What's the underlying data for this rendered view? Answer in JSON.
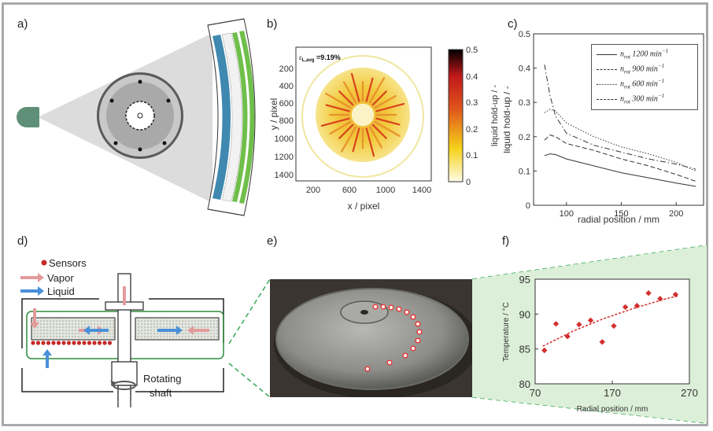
{
  "panels": {
    "a": "a)",
    "b": "b)",
    "c": "c)",
    "d": "d)",
    "e": "e)",
    "f": "f)"
  },
  "panel_b": {
    "annotation": "ε",
    "annotation_sub": "L,avg",
    "annotation_value": " =9.19%",
    "xlabel": "x / pixel",
    "ylabel": "y / pixel",
    "xticks": [
      "200",
      "600",
      "1000",
      "1400"
    ],
    "yticks": [
      "200",
      "400",
      "600",
      "800",
      "1000",
      "1200",
      "1400"
    ],
    "colorbar_ticks": [
      "0.5",
      "0.4",
      "0.3",
      "0.2",
      "0.1",
      "0"
    ],
    "colorbar_label": "liquid hold-up / -",
    "colors": {
      "low": "#fffbe6",
      "mid": "#f5d21a",
      "high": "#c0181a",
      "top": "#000000"
    }
  },
  "chart_data": [
    {
      "type": "line",
      "panel": "c",
      "xlabel": "radial position / mm",
      "ylabel": "liquid hold-up / -",
      "xlim": [
        70,
        225
      ],
      "ylim": [
        0,
        0.5
      ],
      "xticks": [
        "100",
        "150",
        "200"
      ],
      "yticks": [
        "0",
        "0.1",
        "0.2",
        "0.3",
        "0.4",
        "0.5"
      ],
      "grid": false,
      "legend": "top-right",
      "series": [
        {
          "name": "n_rot 1200 min^-1",
          "label": "n",
          "sub": "rot",
          "text": " 1200 ",
          "unit": "min",
          "sup": "−1",
          "style": "solid",
          "x": [
            80,
            85,
            90,
            100,
            125,
            150,
            175,
            200,
            218
          ],
          "y": [
            0.145,
            0.15,
            0.148,
            0.135,
            0.115,
            0.095,
            0.08,
            0.065,
            0.055
          ]
        },
        {
          "name": "n_rot 900 min^-1",
          "label": "n",
          "sub": "rot",
          "text": " 900 ",
          "unit": "min",
          "sup": "−1",
          "style": "dashed",
          "x": [
            80,
            85,
            90,
            100,
            125,
            150,
            175,
            200,
            218
          ],
          "y": [
            0.19,
            0.205,
            0.2,
            0.18,
            0.16,
            0.135,
            0.115,
            0.09,
            0.07
          ]
        },
        {
          "name": "n_rot 600 min^-1",
          "label": "n",
          "sub": "rot",
          "text": " 600 ",
          "unit": "min",
          "sup": "−1",
          "style": "dotted",
          "x": [
            80,
            85,
            90,
            100,
            125,
            150,
            175,
            200,
            218
          ],
          "y": [
            0.27,
            0.28,
            0.275,
            0.24,
            0.2,
            0.17,
            0.15,
            0.125,
            0.1
          ]
        },
        {
          "name": "n_rot 300 min^-1",
          "label": "n",
          "sub": "rot",
          "text": " 300 ",
          "unit": "min",
          "sup": "−1",
          "style": "dashdot",
          "x": [
            80,
            85,
            90,
            100,
            125,
            150,
            175,
            200,
            218
          ],
          "y": [
            0.41,
            0.32,
            0.26,
            0.21,
            0.175,
            0.155,
            0.135,
            0.12,
            0.105
          ]
        }
      ]
    },
    {
      "type": "scatter",
      "panel": "f",
      "xlabel": "Radial position / mm",
      "ylabel": "Temperature / °C",
      "xlim": [
        70,
        270
      ],
      "ylim": [
        80,
        95
      ],
      "xticks": [
        "70",
        "170",
        "270"
      ],
      "yticks": [
        "80",
        "85",
        "90",
        "95"
      ],
      "grid": false,
      "x": [
        82,
        97,
        112,
        127,
        142,
        157,
        172,
        187,
        202,
        217,
        232,
        252
      ],
      "y": [
        84.8,
        88.6,
        86.8,
        88.5,
        89.1,
        86.0,
        88.3,
        91.0,
        91.2,
        93.0,
        92.2,
        92.8
      ],
      "trendline": {
        "x": [
          80,
          120,
          160,
          200,
          240,
          255
        ],
        "y": [
          85.4,
          87.6,
          89.4,
          90.9,
          92.2,
          92.6
        ],
        "style": "dashed"
      },
      "colors": {
        "points": "#d32f2f",
        "trend": "#d32f2f",
        "background": "#dcefd8"
      }
    }
  ],
  "panel_d": {
    "legend": {
      "sensors": "Sensors",
      "vapor": "Vapor",
      "liquid": "Liquid"
    },
    "shaft_label_1": "Rotating",
    "shaft_label_2": "shaft",
    "colors": {
      "sensor": "#c62828",
      "vapor": "#e39a9a",
      "liquid": "#4a90d9",
      "packing": "#e0e4dc",
      "outline": "#2e8b3e"
    }
  },
  "panel_e": {
    "colors": {
      "dashed_link": "#3aaa5a",
      "sensor_marker": "#e53935"
    }
  }
}
